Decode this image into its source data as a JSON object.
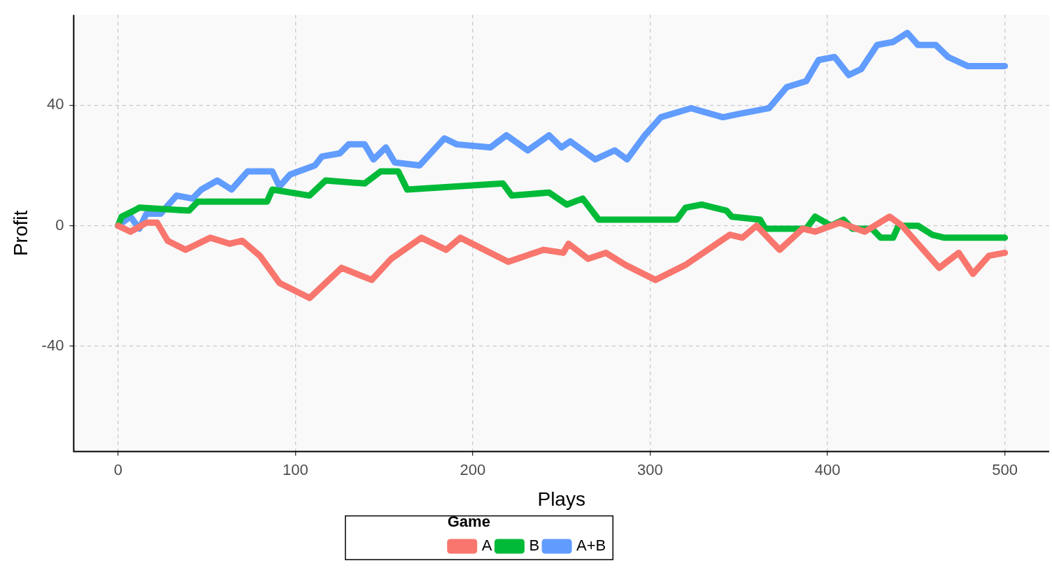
{
  "chart_data": {
    "type": "line",
    "xlabel": "Plays",
    "ylabel": "Profit",
    "legend_title": "Game",
    "legend": "bottom",
    "grid": true,
    "marker": "none",
    "line_style": "solid",
    "xlim": [
      -25,
      525
    ],
    "xticks": [
      0,
      100,
      200,
      300,
      400,
      500
    ],
    "ylim": [
      -75,
      70
    ],
    "yticks": [
      -40,
      0,
      40
    ],
    "series": [
      {
        "name": "A",
        "color": "#f8766d",
        "x": [
          0,
          7,
          16,
          22,
          28,
          38,
          52,
          63,
          70,
          80,
          91,
          108,
          126,
          143,
          154,
          171,
          185,
          193,
          220,
          240,
          251,
          254,
          265,
          275,
          286,
          303,
          320,
          345,
          352,
          360,
          373,
          386,
          393,
          407,
          421,
          435,
          442,
          463,
          474,
          482,
          491,
          500
        ],
        "values": [
          0,
          -2,
          1,
          1,
          -5,
          -8,
          -4,
          -6,
          -5,
          -10,
          -19,
          -24,
          -14,
          -18,
          -11,
          -4,
          -8,
          -4,
          -12,
          -8,
          -9,
          -6,
          -11,
          -9,
          -13,
          -18,
          -13,
          -3,
          -4,
          0,
          -8,
          -1,
          -2,
          1,
          -2,
          3,
          0,
          -14,
          -9,
          -16,
          -10,
          -9
        ]
      },
      {
        "name": "B",
        "color": "#00ba38",
        "x": [
          0,
          2,
          9,
          12,
          40,
          45,
          84,
          87,
          108,
          117,
          139,
          148,
          158,
          163,
          217,
          222,
          243,
          253,
          262,
          271,
          315,
          320,
          329,
          343,
          346,
          362,
          365,
          388,
          393,
          402,
          409,
          414,
          425,
          430,
          437,
          440,
          451,
          459,
          466,
          500
        ],
        "values": [
          0,
          3,
          5,
          6,
          5,
          8,
          8,
          12,
          10,
          15,
          14,
          18,
          18,
          12,
          14,
          10,
          11,
          7,
          9,
          2,
          2,
          6,
          7,
          5,
          3,
          2,
          -1,
          -1,
          3,
          0,
          2,
          -1,
          -1,
          -4,
          -4,
          0,
          0,
          -3,
          -4,
          -4
        ]
      },
      {
        "name": "A+B",
        "color": "#619cff",
        "x": [
          0,
          7,
          12,
          16,
          24,
          33,
          42,
          47,
          56,
          64,
          73,
          87,
          91,
          97,
          111,
          115,
          125,
          130,
          139,
          144,
          151,
          156,
          170,
          184,
          191,
          210,
          219,
          231,
          243,
          250,
          255,
          269,
          280,
          287,
          297,
          306,
          323,
          341,
          349,
          367,
          377,
          388,
          395,
          404,
          412,
          419,
          428,
          437,
          445,
          451,
          461,
          468,
          479,
          489,
          500
        ],
        "values": [
          0,
          3,
          -1,
          4,
          4,
          10,
          9,
          12,
          15,
          12,
          18,
          18,
          13,
          17,
          20,
          23,
          24,
          27,
          27,
          22,
          26,
          21,
          20,
          29,
          27,
          26,
          30,
          25,
          30,
          26,
          28,
          22,
          25,
          22,
          30,
          36,
          39,
          36,
          37,
          39,
          46,
          48,
          55,
          56,
          50,
          52,
          60,
          61,
          64,
          60,
          60,
          56,
          53,
          53,
          53
        ]
      }
    ]
  }
}
